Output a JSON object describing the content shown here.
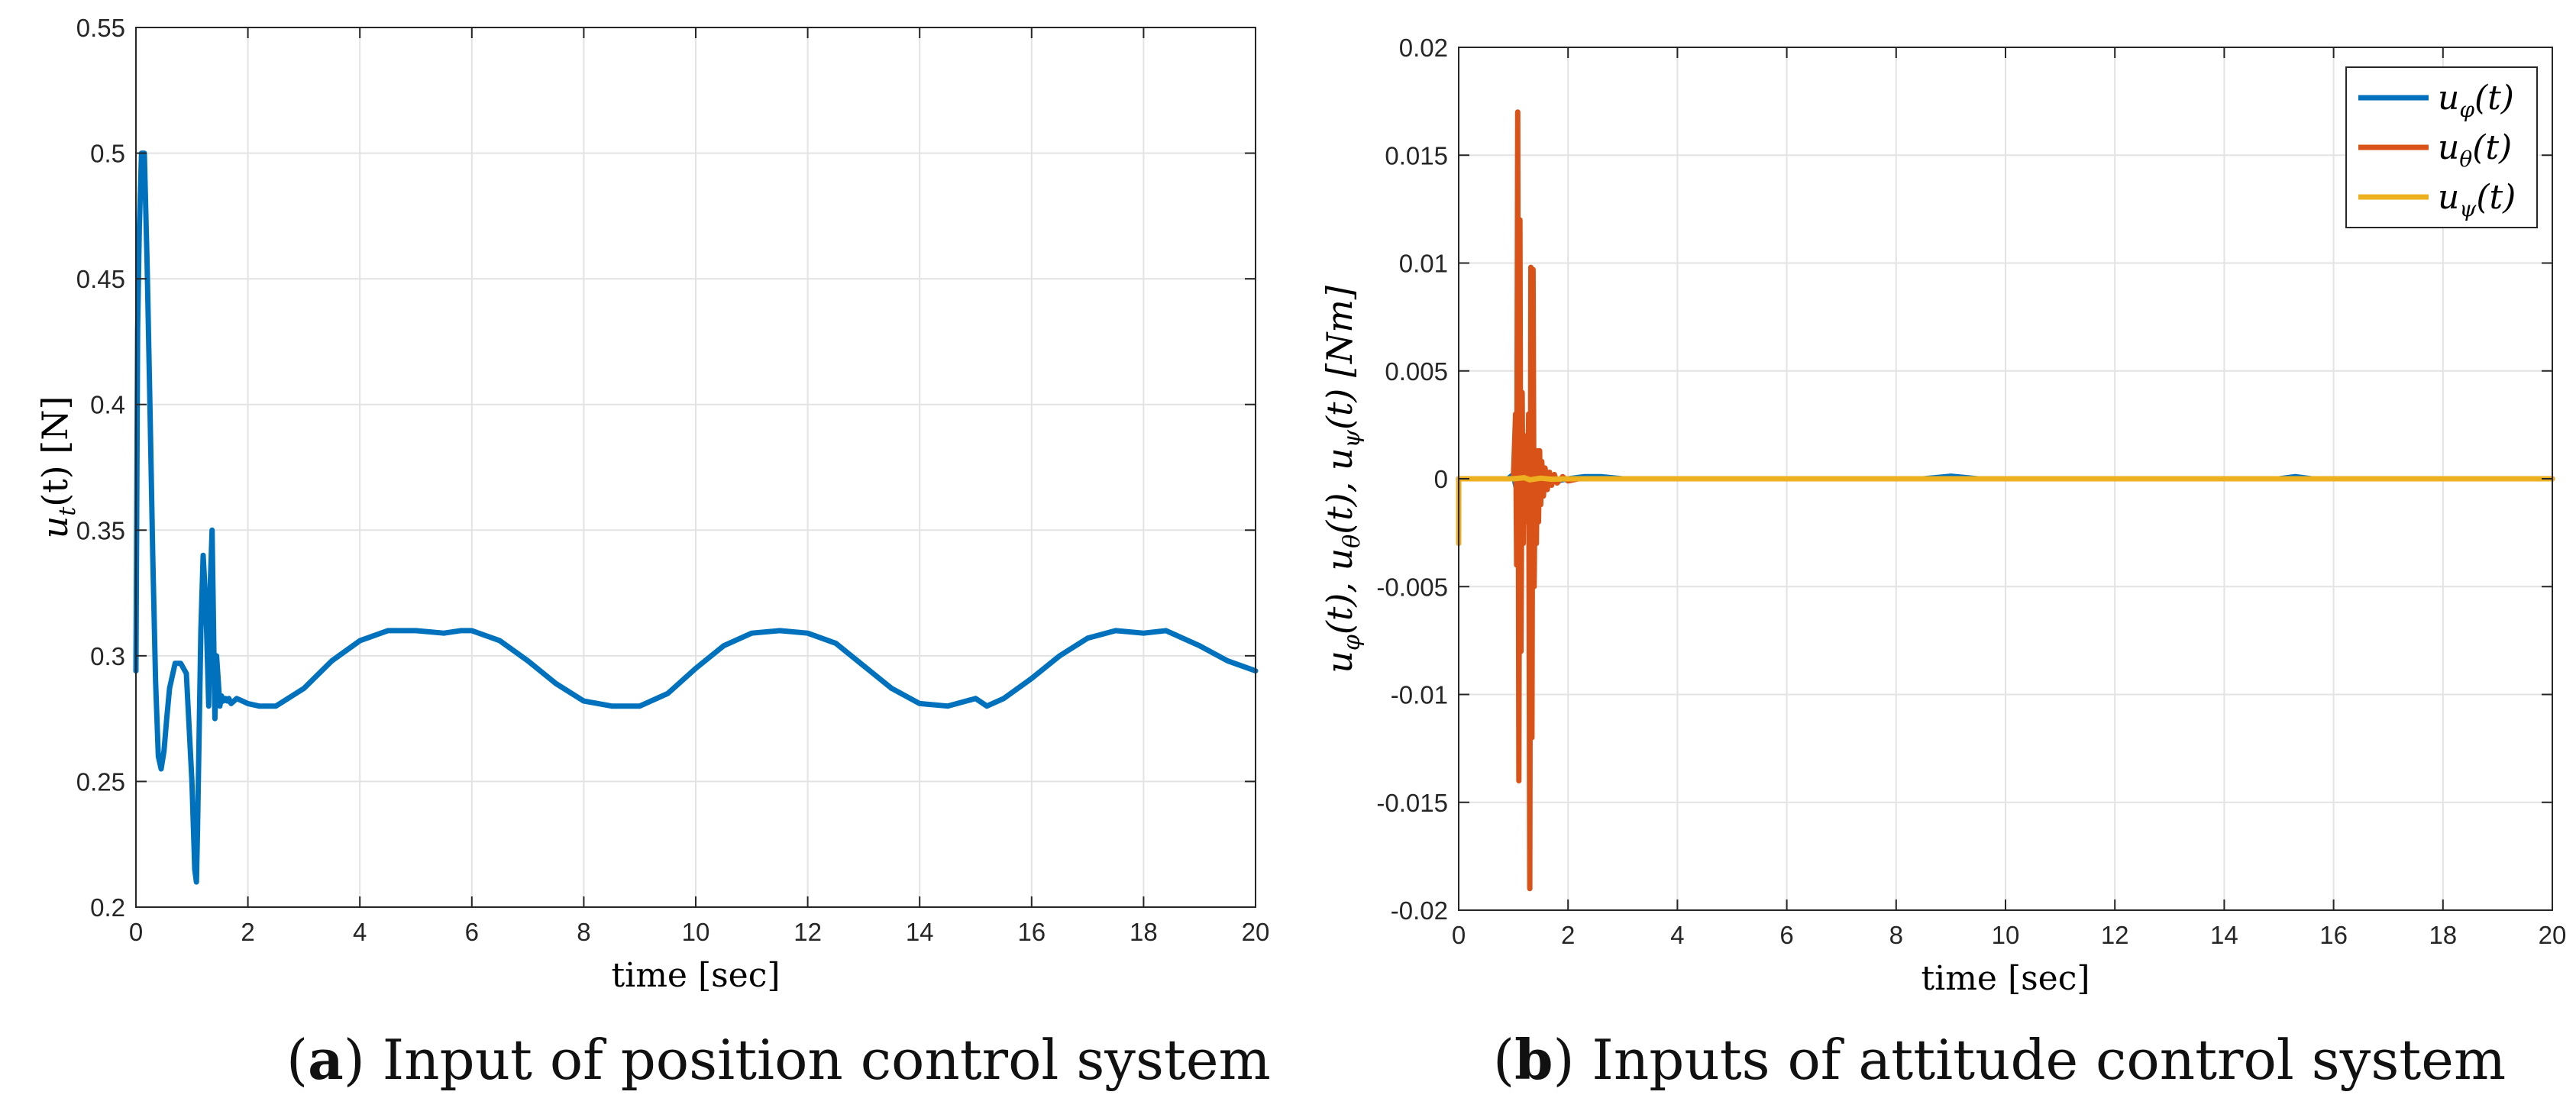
{
  "colors": {
    "blue": "#0072BD",
    "orange": "#D95319",
    "yellow": "#EDB120",
    "grid": "#e3e3e3",
    "axis": "#262626"
  },
  "captions": [
    {
      "letter": "a",
      "text": " Input of position control system"
    },
    {
      "letter": "b",
      "text": " Inputs of attitude control system"
    }
  ],
  "chart_data": [
    {
      "type": "line",
      "title": "",
      "xlabel": "time [sec]",
      "ylabel": "u_t(t) [N]",
      "ylabel_parts": [
        "u",
        "t",
        "(t) [N]"
      ],
      "xlim": [
        0,
        20
      ],
      "ylim": [
        0.2,
        0.55
      ],
      "xticks": [
        0,
        2,
        4,
        6,
        8,
        10,
        12,
        14,
        16,
        18,
        20
      ],
      "yticks": [
        0.2,
        0.25,
        0.3,
        0.35,
        0.4,
        0.45,
        0.5,
        0.55
      ],
      "xtick_labels": [
        "0",
        "2",
        "4",
        "6",
        "8",
        "10",
        "12",
        "14",
        "16",
        "18",
        "20"
      ],
      "ytick_labels": [
        "0.2",
        "0.25",
        "0.3",
        "0.35",
        "0.4",
        "0.45",
        "0.5",
        "0.55"
      ],
      "grid": true,
      "series": [
        {
          "name": "u_t(t)",
          "color": "#0072BD",
          "x": [
            0,
            0.03,
            0.06,
            0.1,
            0.15,
            0.2,
            0.25,
            0.3,
            0.35,
            0.4,
            0.45,
            0.5,
            0.55,
            0.6,
            0.7,
            0.8,
            0.9,
            1.0,
            1.05,
            1.08,
            1.1,
            1.13,
            1.16,
            1.2,
            1.25,
            1.3,
            1.33,
            1.36,
            1.38,
            1.41,
            1.44,
            1.47,
            1.5,
            1.53,
            1.56,
            1.6,
            1.63,
            1.66,
            1.7,
            1.75,
            1.8,
            1.9,
            2.0,
            2.2,
            2.5,
            3.0,
            3.5,
            4.0,
            4.5,
            5.0,
            5.5,
            5.8,
            6.0,
            6.5,
            7.0,
            7.5,
            8.0,
            8.5,
            9.0,
            9.5,
            10.0,
            10.5,
            11.0,
            11.5,
            12.0,
            12.5,
            13.0,
            13.5,
            14.0,
            14.5,
            15.0,
            15.2,
            15.5,
            16.0,
            16.5,
            17.0,
            17.5,
            18.0,
            18.4,
            18.5,
            19.0,
            19.5,
            20.0
          ],
          "values": [
            0.294,
            0.43,
            0.47,
            0.5,
            0.5,
            0.455,
            0.4,
            0.34,
            0.29,
            0.26,
            0.255,
            0.262,
            0.275,
            0.287,
            0.297,
            0.297,
            0.293,
            0.25,
            0.215,
            0.21,
            0.23,
            0.27,
            0.31,
            0.34,
            0.32,
            0.28,
            0.33,
            0.35,
            0.32,
            0.275,
            0.3,
            0.29,
            0.28,
            0.284,
            0.282,
            0.283,
            0.282,
            0.283,
            0.281,
            0.282,
            0.283,
            0.282,
            0.281,
            0.28,
            0.28,
            0.287,
            0.298,
            0.306,
            0.31,
            0.31,
            0.309,
            0.31,
            0.31,
            0.306,
            0.298,
            0.289,
            0.282,
            0.28,
            0.28,
            0.285,
            0.295,
            0.304,
            0.309,
            0.31,
            0.309,
            0.305,
            0.296,
            0.287,
            0.281,
            0.28,
            0.283,
            0.28,
            0.283,
            0.291,
            0.3,
            0.307,
            0.31,
            0.309,
            0.31,
            0.309,
            0.304,
            0.298,
            0.294
          ]
        }
      ]
    },
    {
      "type": "line",
      "title": "",
      "xlabel": "time [sec]",
      "ylabel": "u_φ(t), u_θ(t), u_ψ(t) [Nm]",
      "ylabel_parts": [
        [
          "u",
          "φ",
          "(t), "
        ],
        [
          "u",
          "θ",
          "(t), "
        ],
        [
          "u",
          "ψ",
          "(t) [Nm]"
        ]
      ],
      "xlim": [
        0,
        20
      ],
      "ylim": [
        -0.02,
        0.02
      ],
      "xticks": [
        0,
        2,
        4,
        6,
        8,
        10,
        12,
        14,
        16,
        18,
        20
      ],
      "yticks": [
        -0.02,
        -0.015,
        -0.01,
        -0.005,
        0,
        0.005,
        0.01,
        0.015,
        0.02
      ],
      "xtick_labels": [
        "0",
        "2",
        "4",
        "6",
        "8",
        "10",
        "12",
        "14",
        "16",
        "18",
        "20"
      ],
      "ytick_labels": [
        "-0.02",
        "-0.015",
        "-0.01",
        "-0.005",
        "0",
        "0.005",
        "0.01",
        "0.015",
        "0.02"
      ],
      "grid": true,
      "legend": {
        "position": "top-right",
        "entries": [
          {
            "base": "u",
            "sub": "φ",
            "tail": "(t)",
            "color": "#0072BD"
          },
          {
            "base": "u",
            "sub": "θ",
            "tail": "(t)",
            "color": "#D95319"
          },
          {
            "base": "u",
            "sub": "ψ",
            "tail": "(t)",
            "color": "#EDB120"
          }
        ]
      },
      "series": [
        {
          "name": "u_φ(t)",
          "color": "#0072BD",
          "x": [
            0,
            0.9,
            1.0,
            1.05,
            1.1,
            1.15,
            1.2,
            1.25,
            1.3,
            1.35,
            1.4,
            1.45,
            1.5,
            1.6,
            1.7,
            1.8,
            2.0,
            2.3,
            2.6,
            3.0,
            5.0,
            8.5,
            9.0,
            9.5,
            12.0,
            15.0,
            15.3,
            15.6,
            18.0,
            20.0
          ],
          "values": [
            0,
            0,
            0.0002,
            -0.0004,
            0.0006,
            -0.0008,
            0.0008,
            -0.0006,
            0.0005,
            -0.0004,
            0.0004,
            -0.0003,
            0.0002,
            -0.0002,
            0.0001,
            -0.0001,
            0,
            0.0001,
            0.0001,
            0,
            0,
            0,
            0.00012,
            0,
            0,
            0,
            0.0001,
            0,
            0,
            0
          ]
        },
        {
          "name": "u_θ(t)",
          "color": "#D95319",
          "x": [
            0,
            1.0,
            1.04,
            1.06,
            1.08,
            1.1,
            1.12,
            1.14,
            1.16,
            1.18,
            1.2,
            1.22,
            1.24,
            1.26,
            1.28,
            1.3,
            1.32,
            1.34,
            1.36,
            1.38,
            1.4,
            1.42,
            1.44,
            1.46,
            1.48,
            1.5,
            1.52,
            1.55,
            1.58,
            1.62,
            1.66,
            1.7,
            1.75,
            1.8,
            1.9,
            2.0,
            2.2,
            2.5,
            3.0,
            20.0
          ],
          "values": [
            0,
            0,
            0.003,
            -0.004,
            0.017,
            -0.014,
            0.012,
            -0.008,
            0.004,
            -0.003,
            0.002,
            -0.001,
            0.001,
            -0.002,
            0.003,
            -0.019,
            0.0098,
            -0.012,
            0.0097,
            -0.005,
            0.0006,
            -0.003,
            0.0013,
            -0.002,
            0.0013,
            -0.0012,
            0.0008,
            -0.0008,
            0.0005,
            -0.0005,
            0.0003,
            -0.0003,
            0.0002,
            -0.0002,
            0.0001,
            -0.0001,
            0,
            0,
            0,
            0
          ]
        },
        {
          "name": "u_ψ(t)",
          "color": "#EDB120",
          "x": [
            0,
            0.002,
            0.02,
            0.05,
            1.0,
            1.2,
            1.3,
            1.5,
            1.7,
            2.0,
            20.0
          ],
          "values": [
            -0.003,
            0,
            0,
            0,
            0,
            5e-05,
            -5e-05,
            3e-05,
            -2e-05,
            0,
            0
          ]
        }
      ]
    }
  ]
}
